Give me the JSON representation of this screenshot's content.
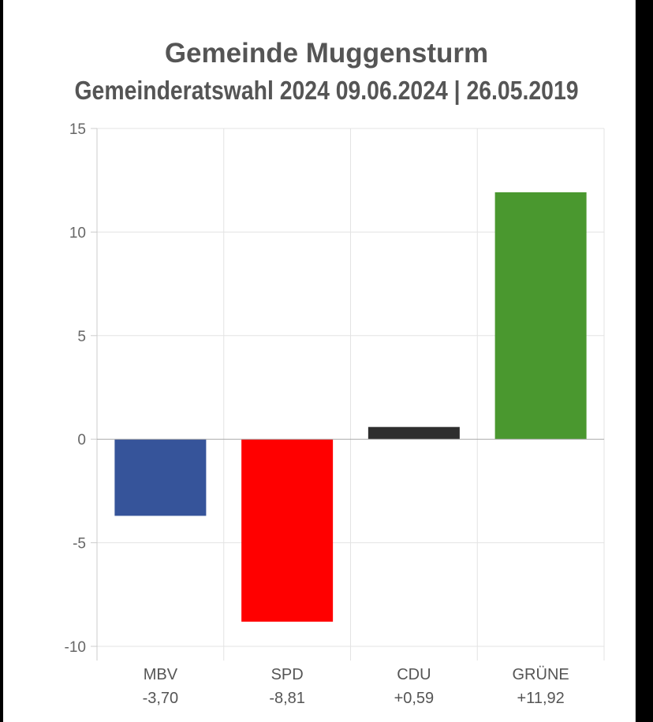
{
  "chart_data": {
    "type": "bar",
    "title": "Gemeinde Muggensturm",
    "subtitle": "Gemeinderatswahl 2024 09.06.2024  | 26.05.2019",
    "categories": [
      "MBV",
      "SPD",
      "CDU",
      "GRÜNE"
    ],
    "value_labels": [
      "-3,70",
      "-8,81",
      "+0,59",
      "+11,92"
    ],
    "values": [
      -3.7,
      -8.81,
      0.59,
      11.92
    ],
    "colors": [
      "#36549a",
      "#ff0000",
      "#2e2e2e",
      "#4a982f"
    ],
    "ylim": [
      -10,
      15
    ],
    "yticks": [
      15,
      10,
      5,
      0,
      -5,
      -10
    ],
    "grid": true
  }
}
